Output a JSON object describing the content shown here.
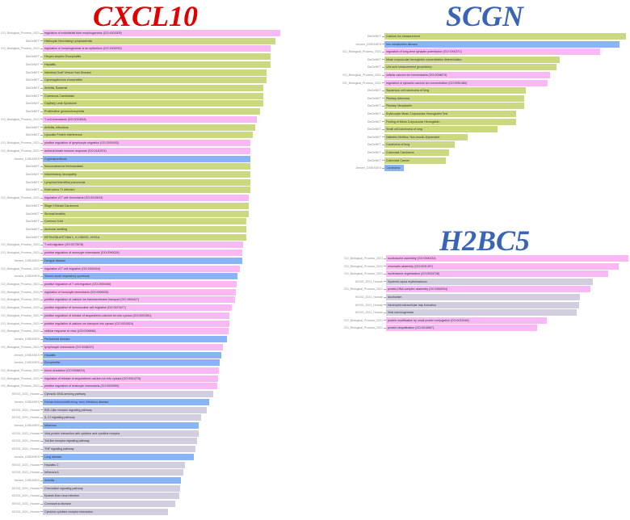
{
  "colors": {
    "GO_Biological_Process_2021": "#f9b9f5",
    "DisGeNET": "#cdd882",
    "Jensen_DISEASES": "#8ab4f8",
    "KEGG_2021_Human": "#d3cde0"
  },
  "chart_data": [
    {
      "type": "bar",
      "orientation": "horizontal",
      "title": "CXCL10",
      "title_color": "#e00000",
      "xlabel": "",
      "ylabel": "",
      "grid": false,
      "legend": "none (library name shown as y tick label)",
      "bars": [
        {
          "library": "GO_Biological_Process_2021",
          "term": "regulation of endothelial tube morphogenesis (GO:1901509)",
          "value": 100
        },
        {
          "library": "DisGeNET",
          "term": "Histiocytic Necrotizing Lymphadenitis",
          "value": 97.9
        },
        {
          "library": "GO_Biological_Process_2021",
          "term": "regulation of morphogenesis of an epithelium (GO:1905330)",
          "value": 95.9
        },
        {
          "library": "DisGeNET",
          "term": "Herpes simplex Encephalitis",
          "value": 95.9
        },
        {
          "library": "DisGeNET",
          "term": "Hepatitis",
          "value": 95.9
        },
        {
          "library": "DisGeNET",
          "term": "Intestinal Graft Versus Host Disease",
          "value": 94.2
        },
        {
          "library": "DisGeNET",
          "term": "Cytomegalovirus encephalitis",
          "value": 94.2
        },
        {
          "library": "DisGeNET",
          "term": "Arthritis, Bacterial",
          "value": 92.8
        },
        {
          "library": "DisGeNET",
          "term": "Cutaneous Candidiasis",
          "value": 92.8
        },
        {
          "library": "DisGeNET",
          "term": "Capillary Leak Syndrome",
          "value": 92.8
        },
        {
          "library": "DisGeNET",
          "term": "Proliferative glomerulonephritis",
          "value": 91.5
        },
        {
          "library": "GO_Biological_Process_2021",
          "term": "T cell chemotaxis (GO:0010818)",
          "value": 90.2
        },
        {
          "library": "DisGeNET",
          "term": "Arthritis, Infectious",
          "value": 89.3
        },
        {
          "library": "DisGeNET",
          "term": "Lipocalin Protein Interference",
          "value": 88.3
        },
        {
          "library": "GO_Biological_Process_2021",
          "term": "positive regulation of lymphocyte migration (GO:2000403)",
          "value": 87.5
        },
        {
          "library": "GO_Biological_Process_2021",
          "term": "antiviral innate immune response (GO:0140374)",
          "value": 87.5
        },
        {
          "library": "Jensen_DISEASES",
          "term": "Cryptosporidiosis",
          "value": 87.5
        },
        {
          "library": "DisGeNET",
          "term": "Mucocutaneous leishmaniasis",
          "value": 87.5
        },
        {
          "library": "DisGeNET",
          "term": "Inflammatory neuropathy",
          "value": 87.5
        },
        {
          "library": "DisGeNET",
          "term": "Lymphoid interstitial pneumonia",
          "value": 87.5
        },
        {
          "library": "DisGeNET",
          "term": "Enterovirus 71 infection",
          "value": 87.5
        },
        {
          "library": "GO_Biological_Process_2021",
          "term": "regulation of T cell chemotaxis (GO:0010819)",
          "value": 86.6
        },
        {
          "library": "DisGeNET",
          "term": "Stage 0 Breast Carcinoma",
          "value": 86.6
        },
        {
          "library": "DisGeNET",
          "term": "Stromal keratitis",
          "value": 86.6
        },
        {
          "library": "DisGeNET",
          "term": "Common Cold",
          "value": 85.7
        },
        {
          "library": "DisGeNET",
          "term": "Auricular swelling",
          "value": 85.7
        },
        {
          "library": "DisGeNET",
          "term": "RETINOBLASTOMA 1, X-LINKED; XHS1A",
          "value": 85.7
        },
        {
          "library": "GO_Biological_Process_2021",
          "term": "T cell migration (GO:0072678)",
          "value": 84.3
        },
        {
          "library": "GO_Biological_Process_2021",
          "term": "positive regulation of monocyte chemotaxis (GO:0090026)",
          "value": 83.9
        },
        {
          "library": "Jensen_DISEASES",
          "term": "Dengue disease",
          "value": 83.9
        },
        {
          "library": "GO_Biological_Process_2021",
          "term": "regulation of T cell migration (GO:2000404)",
          "value": 83.0
        },
        {
          "library": "Jensen_DISEASES",
          "term": "Severe acute respiratory syndrome",
          "value": 82.1
        },
        {
          "library": "GO_Biological_Process_2021",
          "term": "positive regulation of T cell migration (GO:2000406)",
          "value": 81.7
        },
        {
          "library": "GO_Biological_Process_2021",
          "term": "regulation of monocyte chemotaxis (GO:0090025)",
          "value": 81.3
        },
        {
          "library": "GO_Biological_Process_2021",
          "term": "positive regulation of calcium ion transmembrane transport (GO:1904427)",
          "value": 80.9
        },
        {
          "library": "GO_Biological_Process_2021",
          "term": "positive regulation of mononuclear cell migration (GO:0071677)",
          "value": 79.6
        },
        {
          "library": "GO_Biological_Process_2021",
          "term": "positive regulation of release of sequestered calcium ion into cytosol (GO:0051281)",
          "value": 78.7
        },
        {
          "library": "GO_Biological_Process_2021",
          "term": "positive regulation of calcium ion transport into cytosol (GO:0010524)",
          "value": 78.7
        },
        {
          "library": "GO_Biological_Process_2021",
          "term": "cellular response to virus (GO:0098586)",
          "value": 78.3
        },
        {
          "library": "Jensen_DISEASES",
          "term": "Periodontal disease",
          "value": 77.4
        },
        {
          "library": "GO_Biological_Process_2021",
          "term": "lymphocyte chemotaxis (GO:0048247)",
          "value": 75.7
        },
        {
          "library": "Jensen_DISEASES",
          "term": "Hepatitis",
          "value": 75.2
        },
        {
          "library": "Jensen_DISEASES",
          "term": "Encephalitis",
          "value": 74.4
        },
        {
          "library": "GO_Biological_Process_2021",
          "term": "blood circulation (GO:0008015)",
          "value": 74.0
        },
        {
          "library": "GO_Biological_Process_2021",
          "term": "regulation of release of sequestered calcium ion into cytosol (GO:0051279)",
          "value": 73.9
        },
        {
          "library": "GO_Biological_Process_2021",
          "term": "positive regulation of leukocyte chemotaxis (GO:0002690)",
          "value": 73.5
        },
        {
          "library": "KEGG_2021_Human",
          "term": "Cytosolic DNA-sensing pathway",
          "value": 71.8
        },
        {
          "library": "Jensen_DISEASES",
          "term": "Human immunodeficiency virus infectious disease",
          "value": 70.1
        },
        {
          "library": "KEGG_2021_Human",
          "term": "RIG-I-like receptor signaling pathway",
          "value": 69.2
        },
        {
          "library": "KEGG_2021_Human",
          "term": "IL-17 signaling pathway",
          "value": 66.6
        },
        {
          "library": "Jensen_DISEASES",
          "term": "Influenza",
          "value": 65.7
        },
        {
          "library": "KEGG_2021_Human",
          "term": "Viral protein interaction with cytokine and cytokine receptor",
          "value": 65.7
        },
        {
          "library": "KEGG_2021_Human",
          "term": "Toll-like receptor signaling pathway",
          "value": 64.9
        },
        {
          "library": "KEGG_2021_Human",
          "term": "TNF signaling pathway",
          "value": 64.4
        },
        {
          "library": "Jensen_DISEASES",
          "term": "Lung disease",
          "value": 63.6
        },
        {
          "library": "KEGG_2021_Human",
          "term": "Hepatitis C",
          "value": 59.9
        },
        {
          "library": "KEGG_2021_Human",
          "term": "Influenza A",
          "value": 59.1
        },
        {
          "library": "Jensen_DISEASES",
          "term": "Arthritis",
          "value": 58.3
        },
        {
          "library": "KEGG_2021_Human",
          "term": "Chemokine signaling pathway",
          "value": 57.9
        },
        {
          "library": "KEGG_2021_Human",
          "term": "Epstein-Barr virus infection",
          "value": 57.5
        },
        {
          "library": "KEGG_2021_Human",
          "term": "Coronavirus disease",
          "value": 55.7
        },
        {
          "library": "KEGG_2021_Human",
          "term": "Cytokine-cytokine receptor interaction",
          "value": 52.7
        }
      ]
    },
    {
      "type": "bar",
      "orientation": "horizontal",
      "title": "SCGN",
      "title_color": "#3a64b4",
      "xlabel": "",
      "ylabel": "",
      "grid": false,
      "legend": "none (library name shown as y tick label)",
      "bars": [
        {
          "library": "DisGeNET",
          "term": "Calcium ion measurement",
          "value": 100
        },
        {
          "library": "Jensen_DISEASES",
          "term": "Iron metabolism disease",
          "value": 97.3
        },
        {
          "library": "GO_Biological_Process_2021",
          "term": "regulation of long-term synaptic potentiation (GO:1900271)",
          "value": 89.3
        },
        {
          "library": "DisGeNET",
          "term": "Mean corpuscular hemoglobin concentration determination",
          "value": 72.5
        },
        {
          "library": "DisGeNET",
          "term": "Uric acid measurement (procedure)",
          "value": 71.1
        },
        {
          "library": "GO_Biological_Process_2021",
          "term": "cellular calcium ion homeostasis (GO:0006874)",
          "value": 68.5
        },
        {
          "library": "GO_Biological_Process_2021",
          "term": "regulation of cytosolic calcium ion concentration (GO:0051480)",
          "value": 67.4
        },
        {
          "library": "DisGeNET",
          "term": "Squamous cell carcinoma of lung",
          "value": 58.4
        },
        {
          "library": "DisGeNET",
          "term": "Pituitary Adenoma",
          "value": 58.0
        },
        {
          "library": "DisGeNET",
          "term": "Pituitary Neoplasms",
          "value": 58.0
        },
        {
          "library": "DisGeNET",
          "term": "Erythrocyte Mean Corpuscular Hemoglobin Test",
          "value": 54.4
        },
        {
          "library": "DisGeNET",
          "term": "Finding of Mean Corpuscular Hemoglobin",
          "value": 54.4
        },
        {
          "library": "DisGeNET",
          "term": "Small cell carcinoma of lung",
          "value": 46.8
        },
        {
          "library": "DisGeNET",
          "term": "Diabetes Mellitus, Non-Insulin-Dependent",
          "value": 34.6
        },
        {
          "library": "DisGeNET",
          "term": "Carcinoma of lung",
          "value": 29.2
        },
        {
          "library": "DisGeNET",
          "term": "Colorectal Carcinoma",
          "value": 26.9
        },
        {
          "library": "DisGeNET",
          "term": "Colorectal Cancer",
          "value": 25.3
        },
        {
          "library": "Jensen_DISEASES",
          "term": "Carcinoma",
          "value": 8.0
        }
      ]
    },
    {
      "type": "bar",
      "orientation": "horizontal",
      "title": "H2BC5",
      "title_color": "#3a64b4",
      "xlabel": "",
      "ylabel": "",
      "grid": false,
      "legend": "none (library name shown as y tick label)",
      "bars": [
        {
          "library": "GO_Biological_Process_2021",
          "term": "nucleosome assembly (GO:0006334)",
          "value": 100
        },
        {
          "library": "GO_Biological_Process_2021",
          "term": "chromatin assembly (GO:0031497)",
          "value": 96.0
        },
        {
          "library": "GO_Biological_Process_2021",
          "term": "nucleosome organization (GO:0034728)",
          "value": 91.6
        },
        {
          "library": "KEGG_2021_Human",
          "term": "Systemic lupus erythematosus",
          "value": 85.4
        },
        {
          "library": "GO_Biological_Process_2021",
          "term": "protein-DNA complex assembly (GO:0065004)",
          "value": 84.4
        },
        {
          "library": "KEGG_2021_Human",
          "term": "Alcoholism",
          "value": 79.9
        },
        {
          "library": "KEGG_2021_Human",
          "term": "Neutrophil extracellular trap formation",
          "value": 79.6
        },
        {
          "library": "KEGG_2021_Human",
          "term": "Viral carcinogenesis",
          "value": 78.5
        },
        {
          "library": "GO_Biological_Process_2021",
          "term": "protein modification by small protein conjugation (GO:0032446)",
          "value": 66.4
        },
        {
          "library": "GO_Biological_Process_2021",
          "term": "protein ubiquitination (GO:0016567)",
          "value": 62.2
        }
      ]
    }
  ]
}
